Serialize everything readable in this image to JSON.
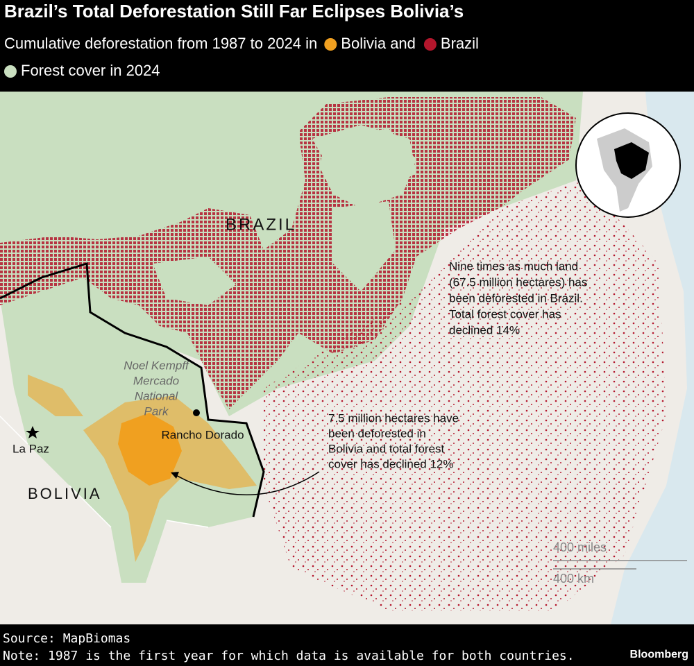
{
  "header": {
    "title": "Brazil’s Total Deforestation Still Far Eclipses Bolivia’s",
    "subtitle": "Cumulative deforestation from 1987 to 2024 in",
    "legend": [
      {
        "label": "Bolivia and",
        "color": "#f0a020"
      },
      {
        "label": "Brazil",
        "color": "#b3162c"
      },
      {
        "label": "Forest cover in 2024",
        "color": "#c9dfc0"
      }
    ]
  },
  "map": {
    "country_labels": [
      "BRAZIL",
      "BOLIVIA"
    ],
    "places": [
      "La Paz",
      "Rancho Dorado"
    ],
    "park": [
      "Noel Kempff",
      "Mercado",
      "National",
      "Park"
    ],
    "annotations": [
      [
        "Nine times as much land",
        "(67.5 million hectares) has",
        "been deforested in Brazil.",
        "Total forest cover has",
        "declined 14%"
      ],
      [
        "7.5 million hectares have",
        "been deforested in",
        "Bolivia and total forest",
        "cover has declined 12%"
      ]
    ],
    "scale": [
      "400 miles",
      "400 km"
    ]
  },
  "footer": {
    "source": "Source: MapBiomas",
    "note": "Note: 1987 is the first year for which data is available for both countries.",
    "brand": "Bloomberg"
  }
}
